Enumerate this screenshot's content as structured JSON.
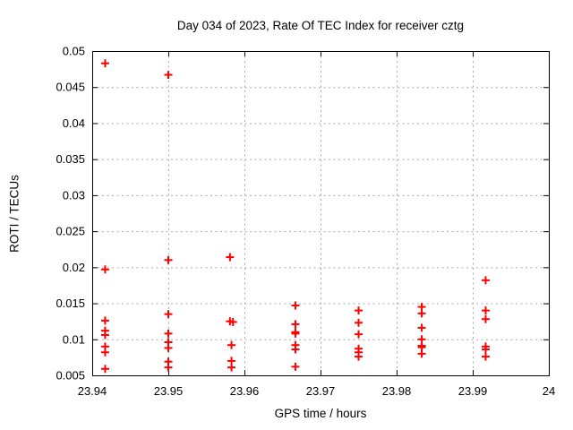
{
  "chart_data": {
    "type": "scatter",
    "title": "Day 034 of 2023, Rate Of TEC Index for receiver cztg",
    "xlabel": "GPS time / hours",
    "ylabel": "ROTI / TECUs",
    "xlim": [
      23.94,
      24
    ],
    "ylim": [
      0.005,
      0.05
    ],
    "xticks": [
      23.94,
      23.95,
      23.96,
      23.97,
      23.98,
      23.99,
      24
    ],
    "xtick_labels": [
      "23.94",
      "23.95",
      "23.96",
      "23.97",
      "23.98",
      "23.99",
      "24"
    ],
    "yticks": [
      0.005,
      0.01,
      0.015,
      0.02,
      0.025,
      0.03,
      0.035,
      0.04,
      0.045,
      0.05
    ],
    "ytick_labels": [
      "0.005",
      "0.01",
      "0.015",
      "0.02",
      "0.025",
      "0.03",
      "0.035",
      "0.04",
      "0.045",
      "0.05"
    ],
    "grid": true,
    "legend": "none",
    "marker": "plus",
    "marker_color": "#ff0000",
    "grid_color": "#a8a8a8",
    "axis_color": "#000000",
    "series": [
      {
        "name": "ROTI",
        "points": [
          [
            23.9417,
            0.0483
          ],
          [
            23.9417,
            0.0197
          ],
          [
            23.9417,
            0.0126
          ],
          [
            23.9417,
            0.0112
          ],
          [
            23.9417,
            0.0106
          ],
          [
            23.9417,
            0.009
          ],
          [
            23.9417,
            0.0082
          ],
          [
            23.9417,
            0.0059
          ],
          [
            23.95,
            0.0467
          ],
          [
            23.95,
            0.021
          ],
          [
            23.95,
            0.0135
          ],
          [
            23.95,
            0.0108
          ],
          [
            23.95,
            0.0096
          ],
          [
            23.95,
            0.0088
          ],
          [
            23.95,
            0.0069
          ],
          [
            23.95,
            0.0061
          ],
          [
            23.9581,
            0.0214
          ],
          [
            23.9581,
            0.0125
          ],
          [
            23.9585,
            0.0124
          ],
          [
            23.9583,
            0.0092
          ],
          [
            23.9583,
            0.007
          ],
          [
            23.9583,
            0.0061
          ],
          [
            23.9667,
            0.0147
          ],
          [
            23.9667,
            0.0121
          ],
          [
            23.9667,
            0.011
          ],
          [
            23.9667,
            0.0108
          ],
          [
            23.9667,
            0.0092
          ],
          [
            23.9667,
            0.0086
          ],
          [
            23.9667,
            0.0062
          ],
          [
            23.975,
            0.014
          ],
          [
            23.975,
            0.0123
          ],
          [
            23.975,
            0.0107
          ],
          [
            23.975,
            0.0087
          ],
          [
            23.975,
            0.0082
          ],
          [
            23.975,
            0.0076
          ],
          [
            23.9833,
            0.0145
          ],
          [
            23.9833,
            0.0136
          ],
          [
            23.9833,
            0.0116
          ],
          [
            23.9833,
            0.01
          ],
          [
            23.9833,
            0.0091
          ],
          [
            23.9833,
            0.0089
          ],
          [
            23.9833,
            0.008
          ],
          [
            23.9917,
            0.0182
          ],
          [
            23.9917,
            0.014
          ],
          [
            23.9917,
            0.0128
          ],
          [
            23.9917,
            0.009
          ],
          [
            23.9917,
            0.0086
          ],
          [
            23.9917,
            0.0076
          ]
        ]
      }
    ]
  }
}
